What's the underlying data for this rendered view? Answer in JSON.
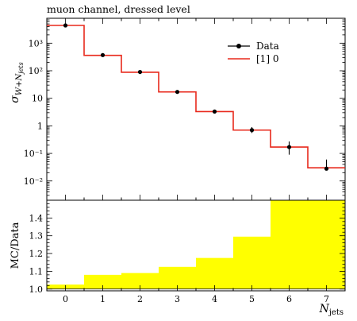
{
  "chart_data": {
    "title": "muon channel, dressed level",
    "type": "line",
    "main_panel": {
      "ylabel_main": "σ",
      "ylabel_sub": "W+N",
      "ylabel_subsub": "jets",
      "yscale": "log",
      "ylim": [
        0.002,
        8000
      ],
      "ytick_labels": [
        "10⁻²",
        "10⁻¹",
        "1",
        "10",
        "10²",
        "10³"
      ],
      "ytick_values": [
        0.01,
        0.1,
        1,
        10,
        100,
        1000
      ],
      "xlim": [
        -0.5,
        7.5
      ],
      "legend_position": "top-right",
      "series": [
        {
          "name": "Data",
          "style": "points",
          "color": "#000000",
          "x": [
            0,
            1,
            2,
            3,
            4,
            5,
            6,
            7
          ],
          "y": [
            4400,
            370,
            90,
            17,
            3.3,
            0.7,
            0.17,
            0.028
          ],
          "yerr_low": [
            4000,
            355,
            86,
            16,
            3.1,
            0.55,
            0.09,
            0.026
          ],
          "yerr_high": [
            4800,
            385,
            94,
            18,
            3.5,
            0.9,
            0.27,
            0.06
          ]
        },
        {
          "name": "[1] 0",
          "style": "step",
          "color": "#e8291c",
          "x": [
            0,
            1,
            2,
            3,
            4,
            5,
            6,
            7
          ],
          "y": [
            4400,
            360,
            88,
            17,
            3.3,
            0.7,
            0.17,
            0.03
          ]
        }
      ]
    },
    "ratio_panel": {
      "ylabel": "MC/Data",
      "ylim": [
        0.99,
        1.5
      ],
      "ytick_labels": [
        "1.0",
        "1.1",
        "1.2",
        "1.3",
        "1.4"
      ],
      "ytick_values": [
        1.0,
        1.1,
        1.2,
        1.3,
        1.4
      ],
      "fill_color": "#ffff00",
      "x": [
        0,
        1,
        2,
        3,
        4,
        5,
        6,
        7
      ],
      "upper": [
        1.025,
        1.08,
        1.09,
        1.125,
        1.175,
        1.295,
        1.5,
        1.5
      ]
    },
    "xlabel_main": "N",
    "xlabel_sub": "jets",
    "xtick_labels": [
      "0",
      "1",
      "2",
      "3",
      "4",
      "5",
      "6",
      "7"
    ]
  }
}
